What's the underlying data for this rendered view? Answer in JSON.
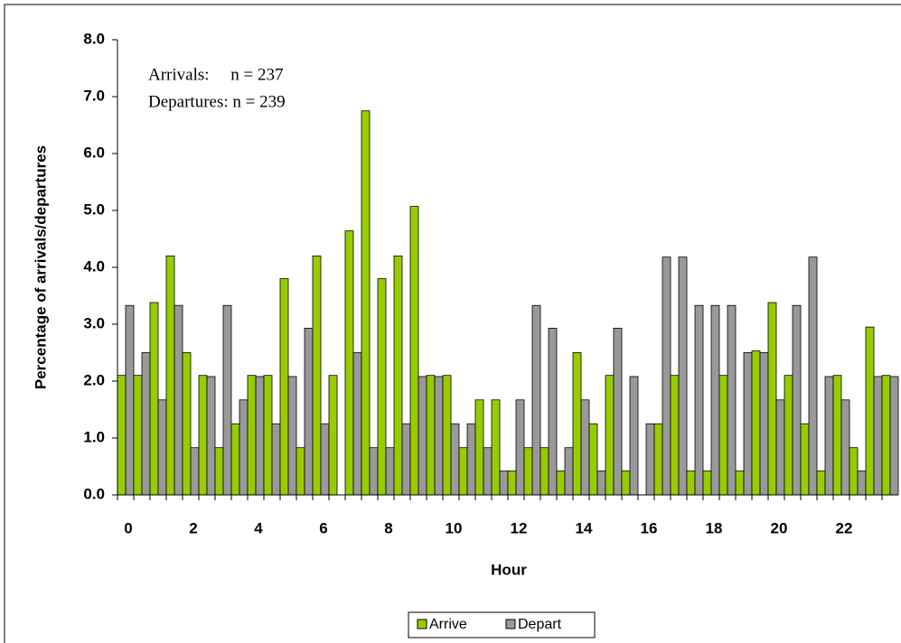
{
  "chart_data": {
    "type": "bar",
    "x_label": "Hour",
    "y_label": "Percentage of arrivals/departures",
    "annotations": [
      "Arrivals:     n = 237",
      "Departures: n = 239"
    ],
    "categories": [
      "0",
      null,
      null,
      null,
      "2",
      null,
      null,
      null,
      "4",
      null,
      null,
      null,
      "6",
      null,
      null,
      null,
      "8",
      null,
      null,
      null,
      "10",
      null,
      null,
      null,
      "12",
      null,
      null,
      null,
      "14",
      null,
      null,
      null,
      "16",
      null,
      null,
      null,
      "18",
      null,
      null,
      null,
      "20",
      null,
      null,
      null,
      "22",
      null,
      null,
      null
    ],
    "series": [
      {
        "name": "Arrive",
        "color": "#99cc00",
        "values": [
          2.1,
          2.1,
          3.38,
          4.2,
          2.5,
          2.1,
          0.83,
          1.25,
          2.1,
          2.1,
          3.8,
          0.83,
          4.2,
          2.1,
          4.64,
          6.75,
          3.8,
          4.2,
          5.07,
          2.1,
          2.1,
          0.83,
          1.67,
          1.67,
          0.42,
          0.83,
          0.83,
          0.42,
          2.5,
          1.25,
          2.1,
          0.42,
          0,
          1.25,
          2.1,
          0.42,
          0.42,
          2.1,
          0.42,
          2.53,
          3.38,
          2.1,
          1.25,
          0.42,
          2.1,
          0.83,
          2.95,
          2.1
        ]
      },
      {
        "name": "Depart",
        "color": "#999999",
        "values": [
          3.33,
          2.5,
          1.67,
          3.33,
          0.83,
          2.08,
          3.33,
          1.67,
          2.08,
          1.25,
          2.08,
          2.93,
          1.25,
          0,
          2.5,
          0.83,
          0.83,
          1.25,
          2.08,
          2.08,
          1.25,
          1.25,
          0.83,
          0.42,
          1.67,
          3.33,
          2.93,
          0.83,
          1.67,
          0.42,
          2.93,
          2.08,
          1.25,
          4.18,
          4.18,
          3.33,
          3.33,
          3.33,
          2.5,
          2.5,
          1.67,
          3.33,
          4.18,
          2.08,
          1.67,
          0.42,
          2.08,
          2.08
        ]
      }
    ],
    "ylim": [
      0,
      8
    ],
    "yticks": [
      {
        "value": 0,
        "label": "0.0"
      },
      {
        "value": 1,
        "label": "1.0"
      },
      {
        "value": 2,
        "label": "2.0"
      },
      {
        "value": 3,
        "label": "3.0"
      },
      {
        "value": 4,
        "label": "4.0"
      },
      {
        "value": 5,
        "label": "5.0"
      },
      {
        "value": 6,
        "label": "6.0"
      },
      {
        "value": 7,
        "label": "7.0"
      },
      {
        "value": 8,
        "label": "8.0"
      }
    ],
    "grid": false,
    "legend": "bottom"
  }
}
